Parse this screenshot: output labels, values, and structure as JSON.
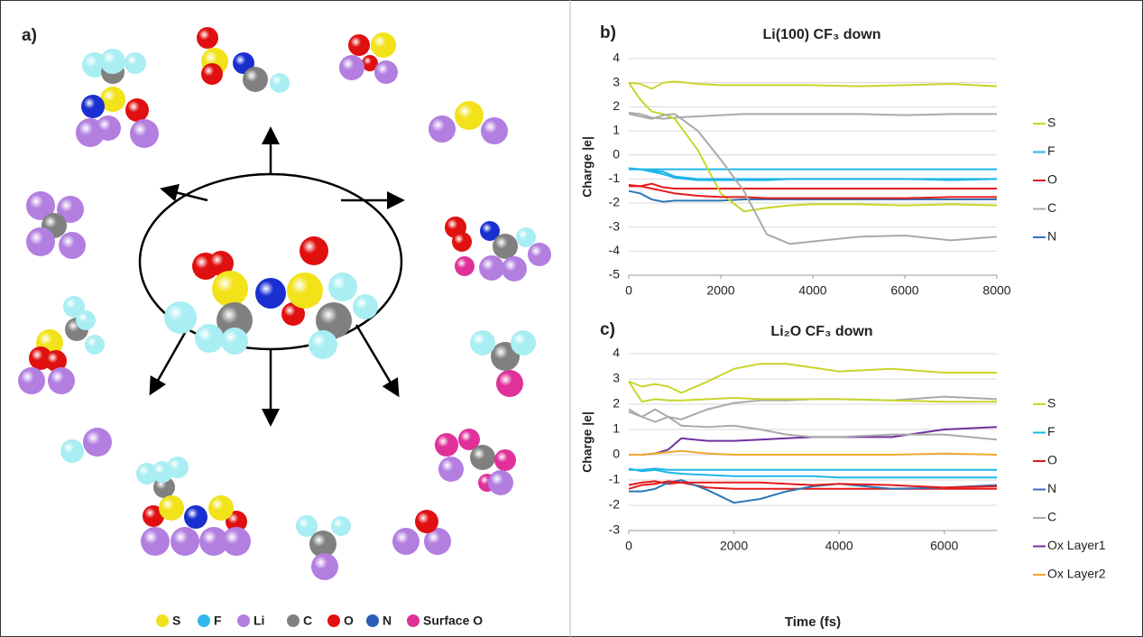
{
  "panel_a": {
    "label": "a)",
    "legend": [
      {
        "name": "S",
        "color": "#f0e020"
      },
      {
        "name": "F",
        "color": "#30b8ec"
      },
      {
        "name": "Li",
        "color": "#b27ee0"
      },
      {
        "name": "C",
        "color": "#808080"
      },
      {
        "name": "O",
        "color": "#e01010"
      },
      {
        "name": "N",
        "color": "#2a5cb8"
      },
      {
        "name": "Surface O",
        "color": "#e0309a"
      }
    ]
  },
  "chart_data": [
    {
      "type": "line",
      "label": "b)",
      "title": "Li(100) CF₃ down",
      "ylabel": "Charge |e|",
      "x": [
        0,
        250,
        500,
        750,
        1000,
        1500,
        2000,
        2500,
        3000,
        3500,
        4000,
        5000,
        6000,
        7000,
        8000
      ],
      "xlim": [
        0,
        8000
      ],
      "xticks": [
        0,
        2000,
        4000,
        6000,
        8000
      ],
      "ylim": [
        -5,
        4
      ],
      "yticks": [
        -5,
        -4,
        -3,
        -2,
        -1,
        0,
        1,
        2,
        3,
        4
      ],
      "grid": true,
      "series": [
        {
          "name": "S",
          "color": "#c8d62a",
          "values": [
            3,
            2.95,
            2.75,
            3.0,
            3.05,
            2.95,
            2.9,
            2.9,
            2.9,
            2.9,
            2.9,
            2.85,
            2.9,
            2.95,
            2.85
          ]
        },
        {
          "name": "F",
          "color": "#1fb5e8",
          "values": [
            -0.6,
            -0.6,
            -0.6,
            -0.6,
            -0.6,
            -0.6,
            -0.6,
            -0.6,
            -0.6,
            -0.6,
            -0.6,
            -0.6,
            -0.6,
            -0.6,
            -0.6
          ]
        },
        {
          "name": "O",
          "color": "#e41a1c",
          "values": [
            -1.3,
            -1.3,
            -1.2,
            -1.35,
            -1.4,
            -1.4,
            -1.4,
            -1.4,
            -1.4,
            -1.4,
            -1.4,
            -1.4,
            -1.4,
            -1.4,
            -1.4
          ]
        },
        {
          "name": "C",
          "color": "#aaaaaa",
          "values": [
            1.75,
            1.7,
            1.55,
            1.5,
            1.55,
            1.6,
            1.65,
            1.7,
            1.7,
            1.7,
            1.7,
            1.7,
            1.65,
            1.7,
            1.7
          ]
        },
        {
          "name": "N",
          "color": "#2e75b6",
          "values": [
            -1.5,
            -1.6,
            -1.85,
            -1.95,
            -1.9,
            -1.9,
            -1.9,
            -1.85,
            -1.85,
            -1.85,
            -1.85,
            -1.85,
            -1.85,
            -1.85,
            -1.85
          ]
        },
        {
          "color": "#c8d62a",
          "values": [
            3,
            2.3,
            1.8,
            1.7,
            1.5,
            0.2,
            -1.6,
            -2.35,
            -2.2,
            -2.1,
            -2.05,
            -2.05,
            -2.1,
            -2.05,
            -2.1
          ]
        },
        {
          "color": "#1fb5e8",
          "values": [
            -0.6,
            -0.6,
            -0.65,
            -0.7,
            -0.9,
            -1.0,
            -1.0,
            -1.0,
            -1.0,
            -1.0,
            -1.0,
            -1.0,
            -1.0,
            -1.0,
            -1.0
          ]
        },
        {
          "color": "#1fb5e8",
          "values": [
            -0.55,
            -0.6,
            -0.7,
            -0.8,
            -0.95,
            -1.05,
            -1.05,
            -1.05,
            -1.05,
            -1.0,
            -1.0,
            -1.0,
            -1.0,
            -1.05,
            -1.0
          ]
        },
        {
          "color": "#e41a1c",
          "values": [
            -1.25,
            -1.3,
            -1.4,
            -1.5,
            -1.6,
            -1.7,
            -1.75,
            -1.75,
            -1.8,
            -1.8,
            -1.8,
            -1.8,
            -1.8,
            -1.75,
            -1.75
          ]
        },
        {
          "color": "#aaaaaa",
          "values": [
            1.7,
            1.6,
            1.5,
            1.65,
            1.7,
            1.0,
            -0.2,
            -1.5,
            -3.3,
            -3.7,
            -3.6,
            -3.4,
            -3.35,
            -3.55,
            -3.4
          ]
        }
      ]
    },
    {
      "type": "line",
      "label": "c)",
      "title": "Li₂O CF₃ down",
      "ylabel": "Charge |e|",
      "xlabel": "Time (fs)",
      "x": [
        0,
        250,
        500,
        750,
        1000,
        1500,
        2000,
        2500,
        3000,
        3500,
        4000,
        5000,
        6000,
        7000
      ],
      "xlim": [
        0,
        7000
      ],
      "xticks": [
        0,
        2000,
        4000,
        6000
      ],
      "ylim": [
        -3,
        4
      ],
      "yticks": [
        -3,
        -2,
        -1,
        0,
        1,
        2,
        3,
        4
      ],
      "grid": true,
      "series": [
        {
          "name": "S",
          "color": "#c8d62a",
          "values": [
            2.9,
            2.7,
            2.8,
            2.7,
            2.45,
            2.9,
            3.4,
            3.6,
            3.6,
            3.45,
            3.3,
            3.4,
            3.25,
            3.25
          ]
        },
        {
          "name": "F",
          "color": "#1fb5e8",
          "values": [
            -0.6,
            -0.6,
            -0.55,
            -0.6,
            -0.6,
            -0.6,
            -0.6,
            -0.6,
            -0.6,
            -0.6,
            -0.6,
            -0.6,
            -0.6,
            -0.6
          ]
        },
        {
          "name": "O",
          "color": "#e41a1c",
          "values": [
            -1.2,
            -1.1,
            -1.05,
            -1.15,
            -1.1,
            -1.3,
            -1.35,
            -1.35,
            -1.35,
            -1.35,
            -1.35,
            -1.35,
            -1.35,
            -1.35
          ]
        },
        {
          "name": "N",
          "color": "#2e75b6",
          "values": [
            -1.45,
            -1.45,
            -1.35,
            -1.1,
            -1.0,
            -1.4,
            -1.9,
            -1.75,
            -1.45,
            -1.25,
            -1.15,
            -1.35,
            -1.3,
            -1.2
          ]
        },
        {
          "name": "C",
          "color": "#aaaaaa",
          "values": [
            1.8,
            1.5,
            1.8,
            1.5,
            1.4,
            1.8,
            2.05,
            2.15,
            2.15,
            2.2,
            2.2,
            2.15,
            2.3,
            2.2
          ]
        },
        {
          "name": "Ox Layer1",
          "color": "#7030a0",
          "values": [
            0,
            0,
            0.05,
            0.2,
            0.65,
            0.55,
            0.55,
            0.6,
            0.65,
            0.7,
            0.7,
            0.7,
            1.0,
            1.1
          ]
        },
        {
          "name": "Ox Layer2",
          "color": "#f0a830",
          "values": [
            0,
            0,
            0.05,
            0.1,
            0.15,
            0.05,
            0,
            0,
            0,
            0,
            0,
            0,
            0.05,
            0
          ]
        },
        {
          "color": "#c8d62a",
          "values": [
            2.9,
            2.1,
            2.2,
            2.15,
            2.15,
            2.2,
            2.25,
            2.2,
            2.2,
            2.2,
            2.2,
            2.15,
            2.1,
            2.1
          ]
        },
        {
          "color": "#1fb5e8",
          "values": [
            -0.55,
            -0.65,
            -0.6,
            -0.7,
            -0.75,
            -0.8,
            -0.85,
            -0.85,
            -0.85,
            -0.85,
            -0.9,
            -0.9,
            -0.9,
            -0.9
          ]
        },
        {
          "color": "#e41a1c",
          "values": [
            -1.35,
            -1.2,
            -1.15,
            -1.05,
            -1.1,
            -1.1,
            -1.1,
            -1.1,
            -1.15,
            -1.2,
            -1.15,
            -1.2,
            -1.3,
            -1.25
          ]
        },
        {
          "color": "#aaaaaa",
          "values": [
            1.7,
            1.5,
            1.3,
            1.5,
            1.15,
            1.1,
            1.15,
            1.0,
            0.8,
            0.7,
            0.7,
            0.8,
            0.8,
            0.6
          ]
        }
      ]
    }
  ]
}
